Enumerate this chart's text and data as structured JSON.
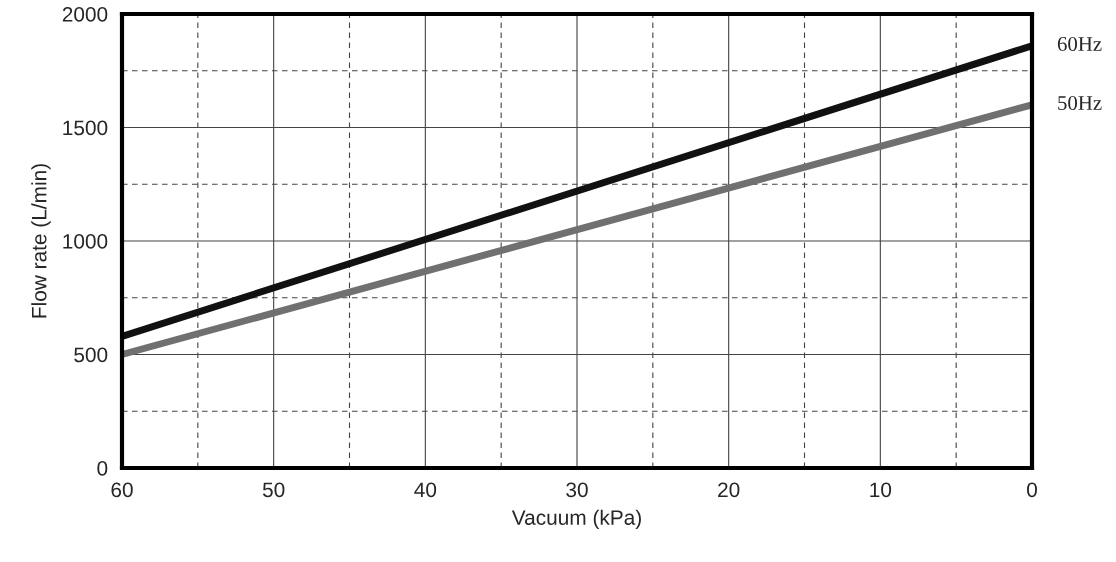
{
  "chart_data": {
    "type": "line",
    "xlabel": "Vacuum (kPa)",
    "ylabel": "Flow rate (L/min)",
    "xlim": [
      60,
      0
    ],
    "ylim": [
      0,
      2000
    ],
    "xticks": [
      60,
      {
        "value": 55,
        "label": null
      },
      50,
      {
        "value": 45,
        "label": null
      },
      40,
      {
        "value": 35,
        "label": null
      },
      30,
      {
        "value": 25,
        "label": null
      },
      20,
      {
        "value": 15,
        "label": null
      },
      10,
      {
        "value": 5,
        "label": null
      },
      0
    ],
    "yticks": [
      0,
      {
        "value": 250,
        "label": null
      },
      500,
      {
        "value": 750,
        "label": null
      },
      1000,
      {
        "value": 1250,
        "label": null
      },
      1500,
      {
        "value": 1750,
        "label": null
      },
      2000
    ],
    "x": [
      60,
      0
    ],
    "grid": true,
    "legend": false,
    "marker": "none",
    "line_style": "solid",
    "series": [
      {
        "name": "60Hz",
        "color": "#111111",
        "values": [
          580,
          1860
        ]
      },
      {
        "name": "50Hz",
        "color": "#707070",
        "values": [
          500,
          1600
        ]
      }
    ]
  }
}
